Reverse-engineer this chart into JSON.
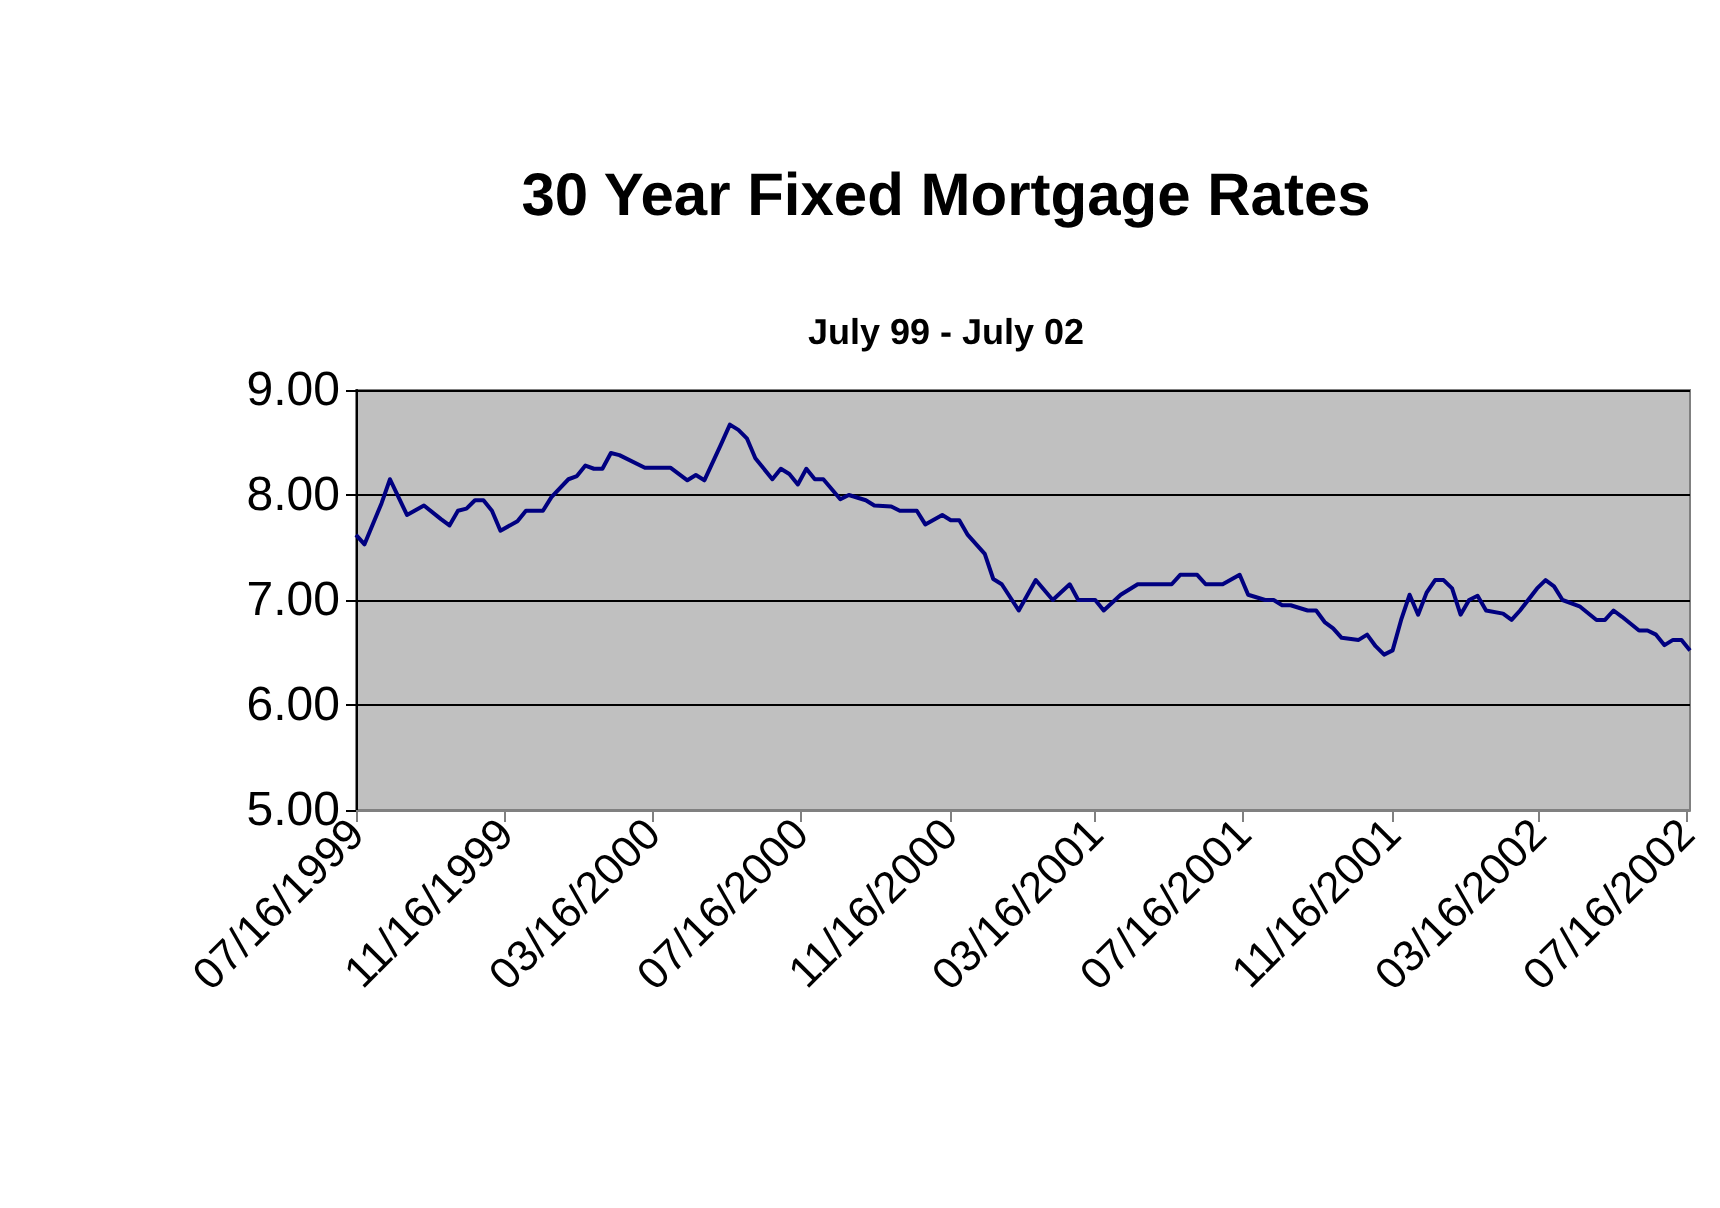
{
  "chart_data": {
    "type": "line",
    "title": "30 Year Fixed Mortgage Rates",
    "subtitle": "July 99 - July 02",
    "x": [
      "1999-07-16",
      "1999-07-23",
      "1999-08-06",
      "1999-08-13",
      "1999-08-20",
      "1999-08-27",
      "1999-09-10",
      "1999-09-24",
      "1999-10-01",
      "1999-10-08",
      "1999-10-15",
      "1999-10-22",
      "1999-10-29",
      "1999-11-05",
      "1999-11-12",
      "1999-11-26",
      "1999-12-03",
      "1999-12-17",
      "1999-12-24",
      "2000-01-07",
      "2000-01-14",
      "2000-01-21",
      "2000-01-28",
      "2000-02-04",
      "2000-02-11",
      "2000-02-18",
      "2000-03-10",
      "2000-03-31",
      "2000-04-14",
      "2000-04-21",
      "2000-04-28",
      "2000-05-12",
      "2000-05-19",
      "2000-05-26",
      "2000-06-02",
      "2000-06-09",
      "2000-06-23",
      "2000-06-30",
      "2000-07-07",
      "2000-07-14",
      "2000-07-21",
      "2000-07-28",
      "2000-08-04",
      "2000-08-18",
      "2000-08-25",
      "2000-09-08",
      "2000-09-15",
      "2000-09-29",
      "2000-10-06",
      "2000-10-20",
      "2000-10-27",
      "2000-11-10",
      "2000-11-17",
      "2000-11-24",
      "2000-12-01",
      "2000-12-15",
      "2000-12-22",
      "2000-12-29",
      "2001-01-12",
      "2001-01-26",
      "2001-02-09",
      "2001-02-23",
      "2001-03-02",
      "2001-03-16",
      "2001-03-23",
      "2001-04-06",
      "2001-04-20",
      "2001-05-18",
      "2001-05-25",
      "2001-06-08",
      "2001-06-15",
      "2001-06-29",
      "2001-07-13",
      "2001-07-20",
      "2001-08-03",
      "2001-08-10",
      "2001-08-17",
      "2001-08-24",
      "2001-09-07",
      "2001-09-14",
      "2001-09-21",
      "2001-09-28",
      "2001-10-05",
      "2001-10-19",
      "2001-10-26",
      "2001-11-02",
      "2001-11-09",
      "2001-11-16",
      "2001-11-23",
      "2001-11-30",
      "2001-12-07",
      "2001-12-14",
      "2001-12-21",
      "2001-12-28",
      "2002-01-04",
      "2002-01-11",
      "2002-01-18",
      "2002-01-25",
      "2002-02-01",
      "2002-02-15",
      "2002-02-22",
      "2002-03-01",
      "2002-03-15",
      "2002-03-22",
      "2002-03-29",
      "2002-04-05",
      "2002-04-19",
      "2002-05-03",
      "2002-05-10",
      "2002-05-17",
      "2002-05-24",
      "2002-06-07",
      "2002-06-14",
      "2002-06-21",
      "2002-06-28",
      "2002-07-05",
      "2002-07-12",
      "2002-07-19"
    ],
    "series": [
      {
        "color": "#000080",
        "values": [
          7.62,
          7.53,
          7.92,
          8.15,
          7.98,
          7.81,
          7.9,
          7.77,
          7.71,
          7.85,
          7.87,
          7.95,
          7.95,
          7.85,
          7.66,
          7.75,
          7.85,
          7.85,
          7.98,
          8.15,
          8.18,
          8.28,
          8.25,
          8.25,
          8.4,
          8.38,
          8.26,
          8.26,
          8.14,
          8.19,
          8.14,
          8.49,
          8.67,
          8.62,
          8.54,
          8.35,
          8.15,
          8.25,
          8.2,
          8.1,
          8.25,
          8.15,
          8.15,
          7.96,
          8.0,
          7.95,
          7.9,
          7.89,
          7.85,
          7.85,
          7.72,
          7.81,
          7.76,
          7.76,
          7.62,
          7.44,
          7.2,
          7.15,
          6.9,
          7.19,
          7.0,
          7.15,
          7.0,
          7.0,
          6.9,
          7.05,
          7.15,
          7.15,
          7.24,
          7.24,
          7.15,
          7.15,
          7.24,
          7.05,
          7.0,
          7.0,
          6.95,
          6.95,
          6.9,
          6.9,
          6.79,
          6.73,
          6.64,
          6.62,
          6.67,
          6.56,
          6.48,
          6.52,
          6.81,
          7.05,
          6.86,
          7.07,
          7.19,
          7.19,
          7.11,
          6.86,
          7.0,
          7.04,
          6.9,
          6.87,
          6.81,
          6.9,
          7.11,
          7.19,
          7.13,
          7.0,
          6.94,
          6.81,
          6.81,
          6.9,
          6.84,
          6.71,
          6.71,
          6.67,
          6.57,
          6.62,
          6.62,
          6.52
        ]
      }
    ],
    "xlim": [
      "1999-07-16",
      "2002-07-19"
    ],
    "xticks": [
      {
        "value": "1999-07-16",
        "label": "07/16/1999"
      },
      {
        "value": "1999-11-16",
        "label": "11/16/1999"
      },
      {
        "value": "2000-03-16",
        "label": "03/16/2000"
      },
      {
        "value": "2000-07-16",
        "label": "07/16/2000"
      },
      {
        "value": "2000-11-16",
        "label": "11/16/2000"
      },
      {
        "value": "2001-03-16",
        "label": "03/16/2001"
      },
      {
        "value": "2001-07-16",
        "label": "07/16/2001"
      },
      {
        "value": "2001-11-16",
        "label": "11/16/2001"
      },
      {
        "value": "2002-03-16",
        "label": "03/16/2002"
      },
      {
        "value": "2002-07-16",
        "label": "07/16/2002"
      }
    ],
    "ylim": [
      5,
      9
    ],
    "yticks": [
      {
        "value": 5,
        "label": "5.00"
      },
      {
        "value": 6,
        "label": "6.00"
      },
      {
        "value": 7,
        "label": "7.00"
      },
      {
        "value": 8,
        "label": "8.00"
      },
      {
        "value": 9,
        "label": "9.00"
      }
    ],
    "grid": "y",
    "marker": "none",
    "line_style": "solid"
  }
}
